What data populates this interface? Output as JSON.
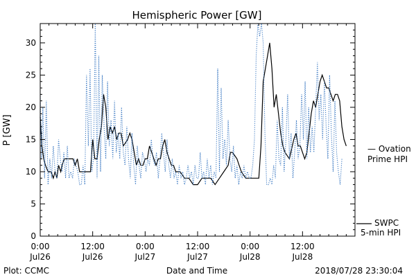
{
  "chart_data": {
    "type": "line",
    "title": "Hemispheric Power [GW]",
    "ylabel": "P [GW]",
    "xlabel": "Date and Time",
    "x_unit": "hours since Jul26 00:00",
    "xlim": [
      0,
      72
    ],
    "ylim": [
      0,
      33
    ],
    "yticks": [
      0,
      5,
      10,
      15,
      20,
      25,
      30
    ],
    "xticks": [
      {
        "x": 0,
        "top": "0:00",
        "bottom": "Jul26"
      },
      {
        "x": 12,
        "top": "12:00",
        "bottom": "Jul26"
      },
      {
        "x": 24,
        "top": "0:00",
        "bottom": "Jul27"
      },
      {
        "x": 36,
        "top": "12:00",
        "bottom": "Jul27"
      },
      {
        "x": 48,
        "top": "0:00",
        "bottom": "Jul28"
      },
      {
        "x": 60,
        "top": "12:00",
        "bottom": "Jul28"
      }
    ],
    "series": [
      {
        "name": "SWPC 5-min HPI",
        "color": "#000000",
        "style": "solid",
        "points": [
          [
            0,
            18.5
          ],
          [
            0.4,
            14
          ],
          [
            0.8,
            12
          ],
          [
            1.2,
            11
          ],
          [
            1.8,
            10
          ],
          [
            2.5,
            10
          ],
          [
            3,
            9
          ],
          [
            3.4,
            10
          ],
          [
            3.8,
            9
          ],
          [
            4.2,
            11
          ],
          [
            4.7,
            10
          ],
          [
            5,
            11
          ],
          [
            5.5,
            12
          ],
          [
            6.5,
            12
          ],
          [
            7.5,
            12
          ],
          [
            8,
            11
          ],
          [
            8.5,
            12
          ],
          [
            9,
            10
          ],
          [
            10,
            10
          ],
          [
            11.5,
            10
          ],
          [
            12,
            15
          ],
          [
            12.5,
            12
          ],
          [
            13,
            12
          ],
          [
            13.5,
            15
          ],
          [
            14,
            17
          ],
          [
            14.5,
            22
          ],
          [
            15,
            20
          ],
          [
            15.5,
            15
          ],
          [
            16,
            17
          ],
          [
            16.5,
            16
          ],
          [
            17,
            17
          ],
          [
            17.5,
            15
          ],
          [
            18,
            16
          ],
          [
            18.5,
            16
          ],
          [
            19,
            14
          ],
          [
            20,
            15
          ],
          [
            20.5,
            16
          ],
          [
            21,
            15
          ],
          [
            21.5,
            13
          ],
          [
            22,
            11
          ],
          [
            22.5,
            12
          ],
          [
            23,
            11
          ],
          [
            23.5,
            11
          ],
          [
            24,
            12
          ],
          [
            24.5,
            12
          ],
          [
            25,
            14
          ],
          [
            25.5,
            13
          ],
          [
            26,
            12
          ],
          [
            26.5,
            11
          ],
          [
            27,
            12
          ],
          [
            27.5,
            12
          ],
          [
            28,
            14
          ],
          [
            28.5,
            15
          ],
          [
            29,
            13
          ],
          [
            29.5,
            12
          ],
          [
            30,
            11
          ],
          [
            30.5,
            11
          ],
          [
            31,
            10
          ],
          [
            32,
            10
          ],
          [
            33,
            9
          ],
          [
            34,
            9
          ],
          [
            35,
            8
          ],
          [
            36,
            8
          ],
          [
            37,
            9
          ],
          [
            38,
            9
          ],
          [
            39,
            9
          ],
          [
            40,
            8
          ],
          [
            41,
            9
          ],
          [
            42,
            10
          ],
          [
            43,
            11
          ],
          [
            43.5,
            13
          ],
          [
            44,
            13
          ],
          [
            45,
            12
          ],
          [
            45.5,
            11
          ],
          [
            46,
            10
          ],
          [
            47,
            9
          ],
          [
            48,
            9
          ],
          [
            49,
            9
          ],
          [
            50,
            9
          ],
          [
            50.5,
            14
          ],
          [
            51,
            24
          ],
          [
            52,
            28
          ],
          [
            52.5,
            30
          ],
          [
            53,
            26
          ],
          [
            53.5,
            20
          ],
          [
            54,
            22
          ],
          [
            55,
            16
          ],
          [
            55.5,
            14
          ],
          [
            56,
            13
          ],
          [
            57,
            12
          ],
          [
            58,
            15
          ],
          [
            58.5,
            16
          ],
          [
            59,
            14
          ],
          [
            59.5,
            14
          ],
          [
            60,
            13
          ],
          [
            60.5,
            12
          ],
          [
            61,
            13
          ],
          [
            61.5,
            16
          ],
          [
            62,
            19
          ],
          [
            62.5,
            21
          ],
          [
            63,
            20
          ],
          [
            63.5,
            22
          ],
          [
            64,
            24
          ],
          [
            64.5,
            25
          ],
          [
            65,
            24
          ],
          [
            65.5,
            23
          ],
          [
            66,
            23
          ],
          [
            66.5,
            22
          ],
          [
            67,
            21
          ],
          [
            67.5,
            22
          ],
          [
            68,
            22
          ],
          [
            68.5,
            21
          ],
          [
            69,
            17
          ],
          [
            69.5,
            15
          ],
          [
            70,
            14
          ]
        ]
      },
      {
        "name": "Ovation Prime HPI",
        "color": "#3a78c2",
        "style": "dotted",
        "points": [
          [
            0,
            22
          ],
          [
            0.3,
            12
          ],
          [
            0.6,
            20
          ],
          [
            1,
            9
          ],
          [
            1.4,
            21
          ],
          [
            1.8,
            8
          ],
          [
            2.2,
            12
          ],
          [
            2.6,
            9
          ],
          [
            3,
            14
          ],
          [
            3.4,
            10
          ],
          [
            3.8,
            9
          ],
          [
            4.2,
            15
          ],
          [
            4.6,
            12
          ],
          [
            5,
            10
          ],
          [
            5.4,
            13
          ],
          [
            5.8,
            9
          ],
          [
            6.2,
            14
          ],
          [
            6.6,
            9
          ],
          [
            7,
            10
          ],
          [
            7.4,
            9
          ],
          [
            7.8,
            12
          ],
          [
            8.2,
            11
          ],
          [
            8.6,
            10
          ],
          [
            9,
            8
          ],
          [
            9.4,
            8
          ],
          [
            9.8,
            11
          ],
          [
            10.2,
            8
          ],
          [
            10.6,
            25
          ],
          [
            11,
            14
          ],
          [
            11.4,
            26
          ],
          [
            11.8,
            10
          ],
          [
            12.2,
            12
          ],
          [
            12.6,
            33
          ],
          [
            13,
            9
          ],
          [
            13.4,
            28
          ],
          [
            13.8,
            10
          ],
          [
            14.2,
            25
          ],
          [
            14.6,
            17
          ],
          [
            15,
            12
          ],
          [
            15.4,
            24
          ],
          [
            15.8,
            14
          ],
          [
            16.2,
            18
          ],
          [
            16.6,
            12
          ],
          [
            17,
            21
          ],
          [
            17.4,
            13
          ],
          [
            17.8,
            16
          ],
          [
            18.2,
            12
          ],
          [
            18.6,
            20
          ],
          [
            19,
            13
          ],
          [
            19.4,
            11
          ],
          [
            19.8,
            17
          ],
          [
            20.2,
            12
          ],
          [
            20.6,
            9
          ],
          [
            21,
            16
          ],
          [
            21.4,
            11
          ],
          [
            21.8,
            8
          ],
          [
            22.2,
            14
          ],
          [
            22.6,
            11
          ],
          [
            23,
            9
          ],
          [
            23.4,
            13
          ],
          [
            23.8,
            12
          ],
          [
            24.2,
            10
          ],
          [
            24.6,
            12
          ],
          [
            25,
            11
          ],
          [
            25.4,
            15
          ],
          [
            25.8,
            12
          ],
          [
            26.2,
            11
          ],
          [
            26.6,
            13
          ],
          [
            27,
            9
          ],
          [
            27.4,
            12
          ],
          [
            27.8,
            16
          ],
          [
            28.2,
            13
          ],
          [
            28.6,
            10
          ],
          [
            29,
            15
          ],
          [
            29.4,
            11
          ],
          [
            29.8,
            9
          ],
          [
            30.2,
            12
          ],
          [
            30.6,
            9
          ],
          [
            31,
            10
          ],
          [
            31.4,
            8
          ],
          [
            31.8,
            11
          ],
          [
            32.2,
            9
          ],
          [
            32.6,
            10
          ],
          [
            33,
            8
          ],
          [
            33.4,
            9
          ],
          [
            33.8,
            11
          ],
          [
            34.2,
            9
          ],
          [
            34.6,
            10
          ],
          [
            35,
            8
          ],
          [
            35.4,
            11
          ],
          [
            35.8,
            9
          ],
          [
            36.2,
            9
          ],
          [
            36.6,
            13
          ],
          [
            37,
            9
          ],
          [
            37.4,
            10
          ],
          [
            37.8,
            8
          ],
          [
            38.2,
            12
          ],
          [
            38.6,
            9
          ],
          [
            39,
            11
          ],
          [
            39.4,
            8
          ],
          [
            39.8,
            10
          ],
          [
            40.2,
            9
          ],
          [
            40.6,
            26
          ],
          [
            41,
            10
          ],
          [
            41.4,
            23
          ],
          [
            41.8,
            12
          ],
          [
            42.2,
            15
          ],
          [
            42.6,
            11
          ],
          [
            43,
            18
          ],
          [
            43.4,
            12
          ],
          [
            43.8,
            10
          ],
          [
            44.2,
            14
          ],
          [
            44.6,
            9
          ],
          [
            45,
            11
          ],
          [
            45.4,
            8
          ],
          [
            45.8,
            10
          ],
          [
            46.2,
            9
          ],
          [
            46.6,
            11
          ],
          [
            47,
            9
          ],
          [
            47.4,
            10
          ],
          [
            47.8,
            9
          ],
          [
            48.2,
            9
          ],
          [
            48.6,
            11
          ],
          [
            49,
            15
          ],
          [
            49.4,
            28
          ],
          [
            49.8,
            33
          ],
          [
            50.2,
            31
          ],
          [
            50.6,
            33
          ],
          [
            51,
            30
          ],
          [
            51.4,
            16
          ],
          [
            51.8,
            8
          ],
          [
            52.2,
            8
          ],
          [
            52.6,
            9
          ],
          [
            53,
            8
          ],
          [
            53.4,
            11
          ],
          [
            53.8,
            9
          ],
          [
            54.2,
            18
          ],
          [
            54.6,
            12
          ],
          [
            55,
            11
          ],
          [
            55.4,
            20
          ],
          [
            55.8,
            10
          ],
          [
            56.2,
            15
          ],
          [
            56.6,
            22
          ],
          [
            57,
            12
          ],
          [
            57.4,
            16
          ],
          [
            57.8,
            9
          ],
          [
            58.2,
            13
          ],
          [
            58.6,
            18
          ],
          [
            59,
            12
          ],
          [
            59.4,
            14
          ],
          [
            59.8,
            22
          ],
          [
            60.2,
            15
          ],
          [
            60.6,
            24
          ],
          [
            61,
            12
          ],
          [
            61.4,
            20
          ],
          [
            61.8,
            13
          ],
          [
            62.2,
            17
          ],
          [
            62.6,
            13
          ],
          [
            63,
            20
          ],
          [
            63.4,
            27
          ],
          [
            63.8,
            18
          ],
          [
            64.2,
            22
          ],
          [
            64.6,
            15
          ],
          [
            65,
            24
          ],
          [
            65.4,
            17
          ],
          [
            65.8,
            12
          ],
          [
            66.2,
            25
          ],
          [
            66.6,
            16
          ],
          [
            67,
            10
          ],
          [
            67.4,
            21
          ],
          [
            67.8,
            13
          ],
          [
            68.2,
            10
          ],
          [
            68.6,
            8
          ],
          [
            69,
            12
          ]
        ]
      }
    ],
    "legend": [
      {
        "lines": [
          "— Ovation",
          "Prime HPI"
        ],
        "color": "#3a78c2"
      },
      {
        "lines": [
          "SWPC",
          "5-min HPI"
        ],
        "color": "#000000"
      }
    ],
    "grid": false
  },
  "footer": {
    "left": "Plot: CCMC",
    "right": "2018/07/28 23:30:04"
  }
}
